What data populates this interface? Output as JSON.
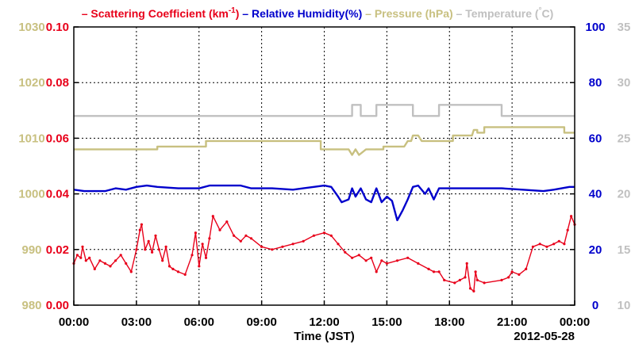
{
  "chart_data": {
    "type": "line",
    "legend": {
      "placement": "top",
      "entries": [
        {
          "key": "scattering",
          "prefix": "– ",
          "label": "Scattering Coefficient (km",
          "sup": "-1",
          "suffix": ")",
          "color": "#e8001a"
        },
        {
          "key": "humidity",
          "prefix": "– ",
          "label": "Relative Humidity(%)",
          "sup": "",
          "suffix": "",
          "color": "#0000cc"
        },
        {
          "key": "pressure",
          "prefix": "– ",
          "label": "Pressure (hPa)",
          "sup": "",
          "suffix": "",
          "color": "#c8c080"
        },
        {
          "key": "temperature",
          "prefix": "– ",
          "label": "Temperature (",
          "sup": "°",
          "suffix": "C)",
          "color": "#c0c0c0"
        }
      ]
    },
    "xlabel": "Time (JST)",
    "date_label": "2012-05-28",
    "x_range": [
      "00:00",
      "24:00"
    ],
    "x_ticks": [
      "00:00",
      "03:00",
      "06:00",
      "09:00",
      "12:00",
      "15:00",
      "18:00",
      "21:00",
      "00:00"
    ],
    "grid": true,
    "axes": {
      "pressure": {
        "ticks": [
          "980",
          "990",
          "1000",
          "1010",
          "1020",
          "1030"
        ],
        "min": 980,
        "max": 1030,
        "color": "#c8c080"
      },
      "scattering": {
        "ticks": [
          "0.00",
          "0.02",
          "0.04",
          "0.06",
          "0.08",
          "0.10"
        ],
        "min": 0,
        "max": 0.1,
        "color": "#e8001a"
      },
      "humidity": {
        "ticks": [
          "0",
          "20",
          "40",
          "60",
          "80",
          "100"
        ],
        "min": 0,
        "max": 100,
        "color": "#0000cc"
      },
      "temperature": {
        "ticks": [
          "10",
          "15",
          "20",
          "25",
          "30",
          "35"
        ],
        "min": 10,
        "max": 35,
        "color": "#c0c0c0"
      }
    },
    "series": [
      {
        "key": "temperature",
        "axis": "temperature",
        "color": "#c0c0c0",
        "markers": false,
        "points": [
          [
            "00:00",
            27
          ],
          [
            "13:20",
            27
          ],
          [
            "13:20",
            28
          ],
          [
            "13:45",
            28
          ],
          [
            "13:45",
            27
          ],
          [
            "14:30",
            27
          ],
          [
            "14:30",
            28
          ],
          [
            "16:15",
            28
          ],
          [
            "16:15",
            27
          ],
          [
            "17:30",
            27
          ],
          [
            "17:30",
            28
          ],
          [
            "20:30",
            28
          ],
          [
            "20:30",
            27
          ],
          [
            "24:00",
            27
          ]
        ]
      },
      {
        "key": "pressure",
        "axis": "pressure",
        "color": "#c8c080",
        "markers": false,
        "points": [
          [
            "00:00",
            1008
          ],
          [
            "04:00",
            1008
          ],
          [
            "04:00",
            1008.5
          ],
          [
            "06:20",
            1008.5
          ],
          [
            "06:20",
            1009.5
          ],
          [
            "11:50",
            1009.5
          ],
          [
            "11:50",
            1008
          ],
          [
            "13:10",
            1008
          ],
          [
            "13:20",
            1007
          ],
          [
            "13:30",
            1008
          ],
          [
            "13:40",
            1007
          ],
          [
            "14:00",
            1008
          ],
          [
            "14:50",
            1008
          ],
          [
            "14:50",
            1008.5
          ],
          [
            "15:50",
            1008.5
          ],
          [
            "16:00",
            1009.5
          ],
          [
            "16:10",
            1009.5
          ],
          [
            "16:15",
            1010.5
          ],
          [
            "16:30",
            1010.5
          ],
          [
            "16:40",
            1009.5
          ],
          [
            "18:10",
            1009.5
          ],
          [
            "18:10",
            1010.5
          ],
          [
            "19:05",
            1010.5
          ],
          [
            "19:10",
            1011.5
          ],
          [
            "19:20",
            1011.5
          ],
          [
            "19:20",
            1011
          ],
          [
            "19:40",
            1011
          ],
          [
            "19:40",
            1012
          ],
          [
            "23:30",
            1012
          ],
          [
            "23:30",
            1011
          ],
          [
            "24:00",
            1011
          ]
        ]
      },
      {
        "key": "humidity",
        "axis": "humidity",
        "color": "#0000cc",
        "markers": false,
        "points": [
          [
            "00:00",
            41.5
          ],
          [
            "00:30",
            41
          ],
          [
            "01:30",
            41
          ],
          [
            "02:00",
            42
          ],
          [
            "02:30",
            41.5
          ],
          [
            "03:00",
            42.5
          ],
          [
            "03:30",
            43
          ],
          [
            "04:00",
            42.5
          ],
          [
            "05:00",
            42
          ],
          [
            "06:00",
            42
          ],
          [
            "06:30",
            43
          ],
          [
            "08:00",
            43
          ],
          [
            "08:30",
            42
          ],
          [
            "09:30",
            42
          ],
          [
            "10:30",
            41.5
          ],
          [
            "11:30",
            42.5
          ],
          [
            "12:00",
            43
          ],
          [
            "12:20",
            42.5
          ],
          [
            "12:40",
            39
          ],
          [
            "12:50",
            37
          ],
          [
            "13:10",
            38
          ],
          [
            "13:20",
            42
          ],
          [
            "13:30",
            39
          ],
          [
            "13:45",
            42
          ],
          [
            "14:00",
            38
          ],
          [
            "14:15",
            37
          ],
          [
            "14:30",
            42
          ],
          [
            "14:45",
            37
          ],
          [
            "15:00",
            39
          ],
          [
            "15:15",
            37.5
          ],
          [
            "15:30",
            30.5
          ],
          [
            "15:45",
            34
          ],
          [
            "16:00",
            38
          ],
          [
            "16:15",
            42.5
          ],
          [
            "16:30",
            43
          ],
          [
            "16:50",
            40
          ],
          [
            "17:00",
            42
          ],
          [
            "17:15",
            38
          ],
          [
            "17:30",
            42
          ],
          [
            "18:30",
            42
          ],
          [
            "19:30",
            42
          ],
          [
            "20:30",
            42
          ],
          [
            "21:30",
            41.5
          ],
          [
            "22:30",
            41
          ],
          [
            "23:00",
            41.5
          ],
          [
            "23:45",
            42.5
          ],
          [
            "24:00",
            42.5
          ]
        ]
      },
      {
        "key": "scattering",
        "axis": "scattering",
        "color": "#e8001a",
        "markers": true,
        "points": [
          [
            "00:00",
            0.015
          ],
          [
            "00:10",
            0.018
          ],
          [
            "00:20",
            0.017
          ],
          [
            "00:25",
            0.021
          ],
          [
            "00:35",
            0.016
          ],
          [
            "00:45",
            0.017
          ],
          [
            "01:00",
            0.013
          ],
          [
            "01:15",
            0.016
          ],
          [
            "01:30",
            0.015
          ],
          [
            "01:45",
            0.014
          ],
          [
            "02:00",
            0.016
          ],
          [
            "02:15",
            0.018
          ],
          [
            "02:30",
            0.015
          ],
          [
            "02:45",
            0.012
          ],
          [
            "03:00",
            0.02
          ],
          [
            "03:10",
            0.027
          ],
          [
            "03:15",
            0.029
          ],
          [
            "03:25",
            0.02
          ],
          [
            "03:35",
            0.023
          ],
          [
            "03:45",
            0.019
          ],
          [
            "03:55",
            0.025
          ],
          [
            "04:05",
            0.02
          ],
          [
            "04:15",
            0.016
          ],
          [
            "04:25",
            0.021
          ],
          [
            "04:35",
            0.014
          ],
          [
            "04:45",
            0.013
          ],
          [
            "05:00",
            0.012
          ],
          [
            "05:20",
            0.011
          ],
          [
            "05:40",
            0.018
          ],
          [
            "05:50",
            0.026
          ],
          [
            "06:00",
            0.014
          ],
          [
            "06:10",
            0.022
          ],
          [
            "06:20",
            0.017
          ],
          [
            "06:30",
            0.024
          ],
          [
            "06:40",
            0.032
          ],
          [
            "07:00",
            0.027
          ],
          [
            "07:20",
            0.03
          ],
          [
            "07:40",
            0.025
          ],
          [
            "08:00",
            0.023
          ],
          [
            "08:15",
            0.025
          ],
          [
            "08:30",
            0.024
          ],
          [
            "09:00",
            0.021
          ],
          [
            "09:30",
            0.02
          ],
          [
            "10:00",
            0.021
          ],
          [
            "10:30",
            0.022
          ],
          [
            "11:00",
            0.023
          ],
          [
            "11:30",
            0.025
          ],
          [
            "12:00",
            0.026
          ],
          [
            "12:20",
            0.025
          ],
          [
            "12:40",
            0.022
          ],
          [
            "13:00",
            0.019
          ],
          [
            "13:20",
            0.017
          ],
          [
            "13:40",
            0.018
          ],
          [
            "14:00",
            0.016
          ],
          [
            "14:15",
            0.017
          ],
          [
            "14:30",
            0.012
          ],
          [
            "14:45",
            0.016
          ],
          [
            "15:00",
            0.015
          ],
          [
            "15:30",
            0.016
          ],
          [
            "16:00",
            0.017
          ],
          [
            "16:30",
            0.015
          ],
          [
            "17:00",
            0.013
          ],
          [
            "17:15",
            0.012
          ],
          [
            "17:30",
            0.012
          ],
          [
            "17:45",
            0.009
          ],
          [
            "18:15",
            0.008
          ],
          [
            "18:30",
            0.009
          ],
          [
            "18:45",
            0.01
          ],
          [
            "18:50",
            0.015
          ],
          [
            "19:00",
            0.006
          ],
          [
            "19:10",
            0.005
          ],
          [
            "19:15",
            0.012
          ],
          [
            "19:20",
            0.009
          ],
          [
            "19:40",
            0.008
          ],
          [
            "20:30",
            0.009
          ],
          [
            "20:50",
            0.01
          ],
          [
            "21:00",
            0.012
          ],
          [
            "21:20",
            0.011
          ],
          [
            "21:40",
            0.013
          ],
          [
            "22:00",
            0.021
          ],
          [
            "22:20",
            0.022
          ],
          [
            "22:40",
            0.021
          ],
          [
            "23:00",
            0.022
          ],
          [
            "23:15",
            0.023
          ],
          [
            "23:30",
            0.022
          ],
          [
            "23:40",
            0.027
          ],
          [
            "23:50",
            0.032
          ],
          [
            "24:00",
            0.029
          ]
        ]
      }
    ]
  }
}
